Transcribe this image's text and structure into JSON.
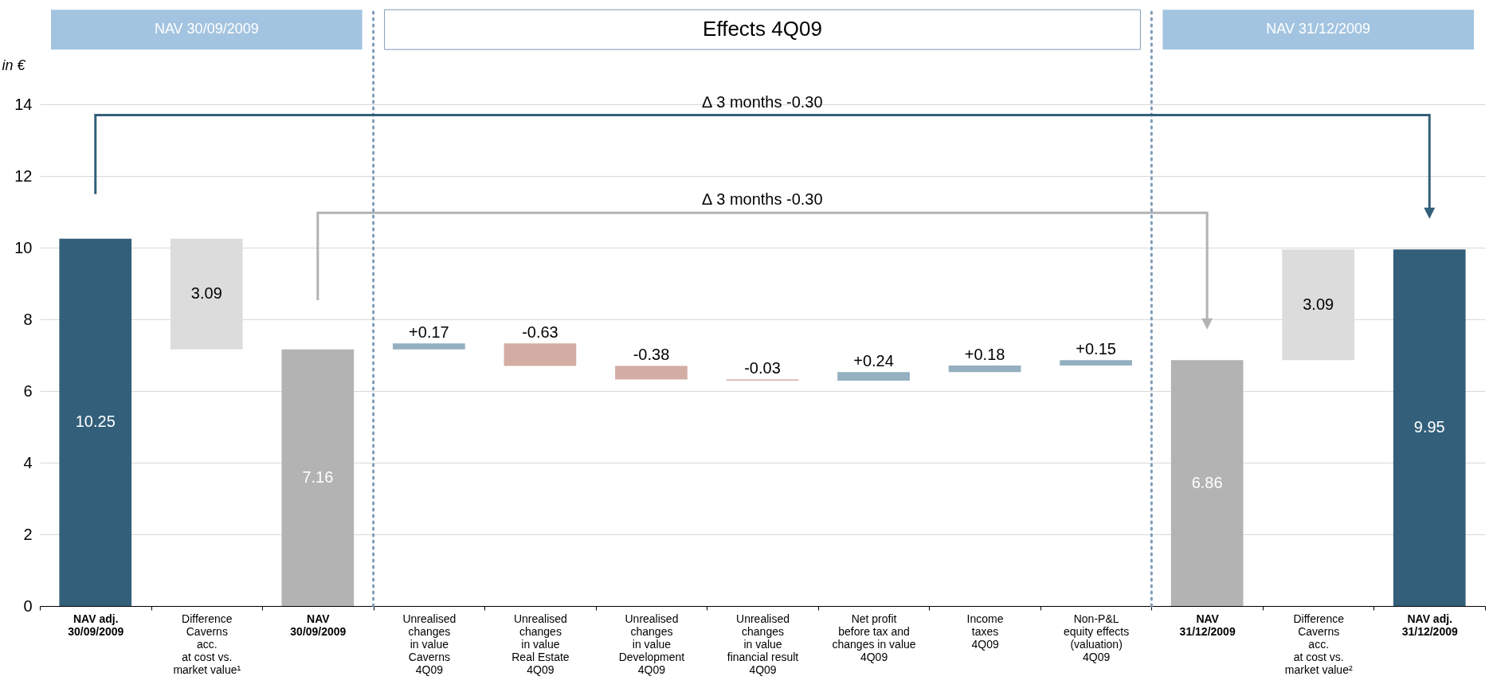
{
  "chart_data": {
    "type": "bar",
    "ylabel": "in €",
    "categories": [
      "NAV adj.\n30/09/2009",
      "Difference\nCaverns\nacc.\nat cost vs.\nmarket value¹",
      "NAV\n30/09/2009",
      "Unrealised\nchanges\nin value\nCaverns\n4Q09",
      "Unrealised\nchanges\nin value\nReal Estate\n4Q09",
      "Unrealised\nchanges\nin value\nDevelopment\n4Q09",
      "Unrealised\nchanges\nin value\nfinancial result\n4Q09",
      "Net profit\nbefore tax and\nchanges in value\n4Q09",
      "Income\ntaxes\n4Q09",
      "Non-P&L\nequity effects\n(valuation)\n4Q09",
      "NAV\n31/12/2009",
      "Difference\nCaverns\nacc.\nat cost vs.\nmarket value²",
      "NAV adj.\n31/12/2009"
    ],
    "values": [
      10.25,
      3.09,
      7.16,
      0.17,
      -0.63,
      -0.38,
      -0.03,
      0.24,
      0.18,
      0.15,
      6.86,
      3.09,
      9.95
    ],
    "base": [
      0,
      7.16,
      0,
      7.16,
      7.33,
      6.7,
      6.32,
      6.29,
      6.53,
      6.71,
      0,
      6.86,
      0
    ],
    "value_labels": [
      "10.25",
      "3.09",
      "7.16",
      "+0.17",
      "-0.63",
      "-0.38",
      "-0.03",
      "+0.24",
      "+0.18",
      "+0.15",
      "6.86",
      "3.09",
      "9.95"
    ],
    "colors": [
      "#335f7a",
      "#dcdcdc",
      "#b3b3b3",
      "#94afbf",
      "#d3ada3",
      "#d3ada3",
      "#d3ada3",
      "#94afbf",
      "#94afbf",
      "#94afbf",
      "#b3b3b3",
      "#dcdcdc",
      "#335f7a"
    ],
    "ylim": [
      0,
      14
    ],
    "yticks": [
      0,
      2,
      4,
      6,
      8,
      10,
      12,
      14
    ],
    "grid": "y",
    "annotations": [
      "NAV 30/09/2009",
      "Effects 4Q09",
      "NAV 31/12/2009",
      "∆ 3 months -0.30",
      "∆ 3 months -0.30"
    ]
  }
}
